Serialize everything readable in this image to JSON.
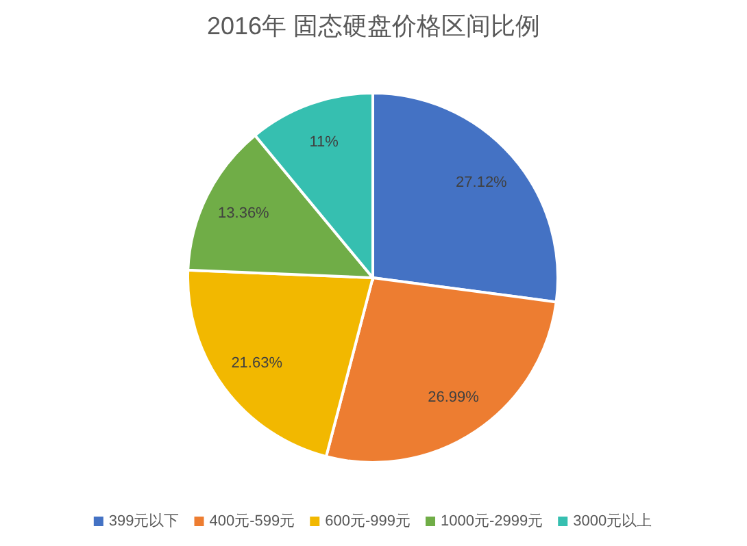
{
  "chart_data": {
    "type": "pie",
    "title": "2016年 固态硬盘价格区间比例",
    "categories": [
      "399元以下",
      "400元-599元",
      "600元-999元",
      "1000元-2999元",
      "3000元以上"
    ],
    "values": [
      27.12,
      26.99,
      21.63,
      13.36,
      11
    ],
    "value_labels": [
      "27.12%",
      "26.99%",
      "21.63%",
      "13.36%",
      "11%"
    ],
    "colors": [
      "#4472c4",
      "#ed7d31",
      "#f2b800",
      "#70ad47",
      "#36bfb0"
    ],
    "legend": "bottom"
  }
}
